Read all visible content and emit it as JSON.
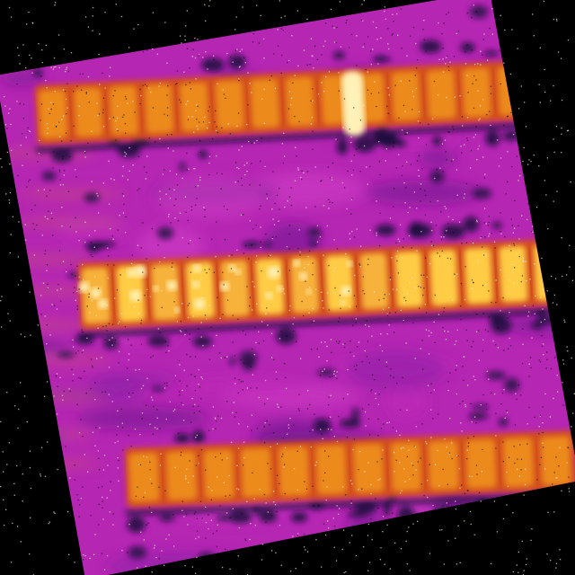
{
  "image": {
    "colormap": "inferno",
    "palette": {
      "background": "#000000",
      "speckle": "#f5ecd4",
      "tissue_low": "#6b1a8c",
      "tissue_mid": "#c028b8",
      "tissue_high": "#d23fc6",
      "void": "#1e0b3e",
      "band_edge": "#d2501e",
      "band_core": "#ec8a1e",
      "band_bright": "#ffcc45",
      "band_hot": "#fff2b8"
    },
    "bands": [
      {
        "name": "upper-band",
        "segments": 14,
        "brightness": "medium"
      },
      {
        "name": "middle-band",
        "segments": 14,
        "brightness": "high"
      },
      {
        "name": "lower-band",
        "segments": 12,
        "brightness": "medium"
      }
    ],
    "noise": "salt-and-pepper",
    "rotation_deg": -10
  }
}
